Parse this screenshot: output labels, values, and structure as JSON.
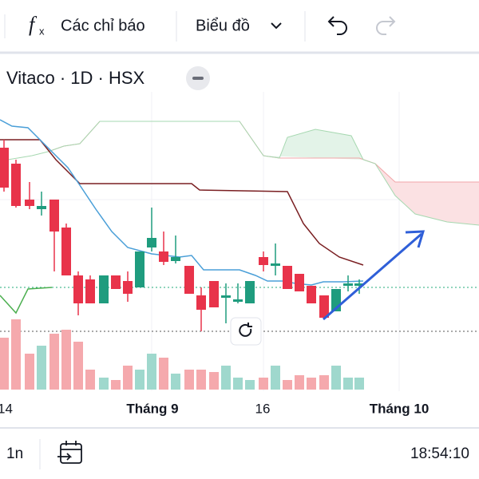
{
  "toolbar": {
    "indicators": "Các chỉ báo",
    "chart_type": "Biểu đồ"
  },
  "symbol": "Vitaco · 1D · HSX",
  "x_axis": {
    "labels": [
      "14",
      "Tháng 9",
      "16",
      "Tháng 10"
    ]
  },
  "bottom_bar": {
    "range": "1n",
    "time": "18:54:10"
  }
}
